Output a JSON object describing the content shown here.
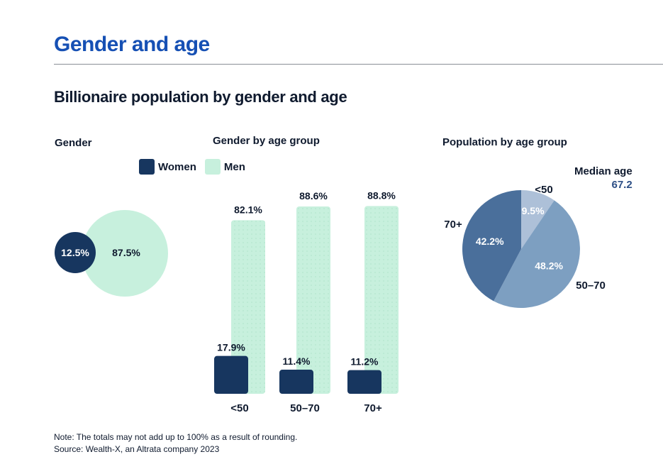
{
  "page": {
    "title": "Gender and age",
    "subtitle": "Billionaire population by gender and age",
    "note": "Note: The totals may not add up to 100% as a result of rounding.",
    "source": "Source: Wealth-X, an Altrata company 2023"
  },
  "colors": {
    "title": "#1650b4",
    "women": "#17365f",
    "men": "#c7f0dd",
    "pie_lt50": "#adc0d8",
    "pie_50_70": "#7d9fc1",
    "pie_70plus": "#4a6f9b"
  },
  "chart_data": [
    {
      "type": "bubble",
      "title": "Gender",
      "series": [
        {
          "name": "Women",
          "value": 12.5,
          "label": "12.5%"
        },
        {
          "name": "Men",
          "value": 87.5,
          "label": "87.5%"
        }
      ]
    },
    {
      "type": "bar",
      "title": "Gender by age group",
      "legend": [
        "Women",
        "Men"
      ],
      "legend_placement": "top",
      "categories": [
        "<50",
        "50–70",
        "70+"
      ],
      "series": [
        {
          "name": "Women",
          "values": [
            17.9,
            11.4,
            11.2
          ],
          "labels": [
            "17.9%",
            "11.4%",
            "11.2%"
          ]
        },
        {
          "name": "Men",
          "values": [
            82.1,
            88.6,
            88.8
          ],
          "labels": [
            "82.1%",
            "88.6%",
            "88.8%"
          ]
        }
      ],
      "ylim": [
        0,
        100
      ],
      "grid": false
    },
    {
      "type": "pie",
      "title": "Population by age group",
      "annotation": {
        "label": "Median age",
        "value": "67.2"
      },
      "slices": [
        {
          "category": "<50",
          "value": 9.5,
          "label": "9.5%"
        },
        {
          "category": "50–70",
          "value": 48.2,
          "label": "48.2%"
        },
        {
          "category": "70+",
          "value": 42.2,
          "label": "42.2%"
        }
      ]
    }
  ]
}
